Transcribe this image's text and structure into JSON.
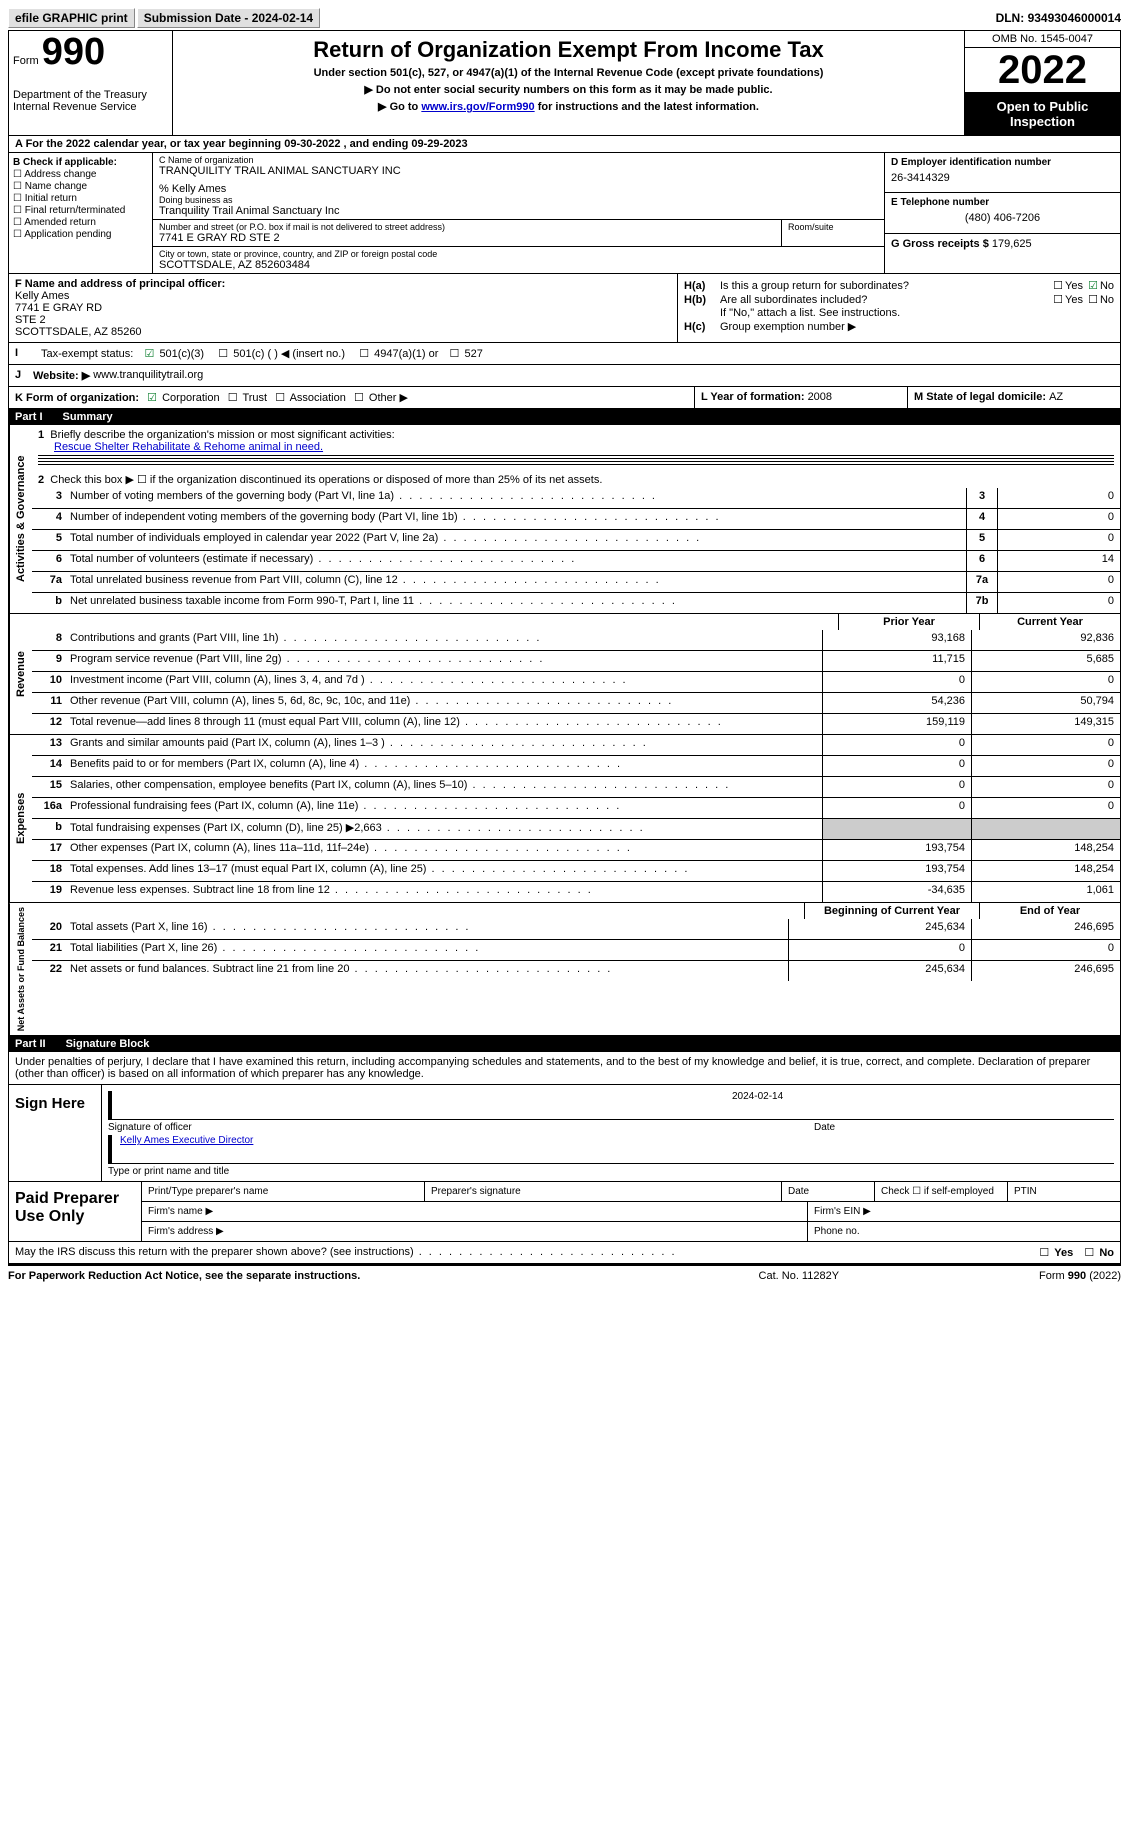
{
  "topbar": {
    "efile": "efile GRAPHIC print",
    "submission_label": "Submission Date - ",
    "submission_date": "2024-02-14",
    "dln_label": "DLN: ",
    "dln": "93493046000014"
  },
  "header": {
    "form_word": "Form",
    "form_num": "990",
    "dept": "Department of the Treasury\nInternal Revenue Service",
    "title": "Return of Organization Exempt From Income Tax",
    "sub1": "Under section 501(c), 527, or 4947(a)(1) of the Internal Revenue Code (except private foundations)",
    "sub2": "Do not enter social security numbers on this form as it may be made public.",
    "sub3_pre": "Go to ",
    "sub3_link": "www.irs.gov/Form990",
    "sub3_post": " for instructions and the latest information.",
    "omb": "OMB No. 1545-0047",
    "year": "2022",
    "inspect": "Open to Public Inspection"
  },
  "row_a": {
    "prefix": "A For the 2022 calendar year, or tax year beginning ",
    "begin": "09-30-2022",
    "mid": " , and ending ",
    "end": "09-29-2023"
  },
  "box_b": {
    "hdr": "B Check if applicable:",
    "opts": [
      "Address change",
      "Name change",
      "Initial return",
      "Final return/terminated",
      "Amended return",
      "Application pending"
    ]
  },
  "box_c": {
    "name_lbl": "C Name of organization",
    "name": "TRANQUILITY TRAIL ANIMAL SANCTUARY INC",
    "pct": "% Kelly Ames",
    "dba_lbl": "Doing business as",
    "dba": "Tranquility Trail Animal Sanctuary Inc",
    "addr_lbl": "Number and street (or P.O. box if mail is not delivered to street address)",
    "addr": "7741 E GRAY RD STE 2",
    "room_lbl": "Room/suite",
    "city_lbl": "City or town, state or province, country, and ZIP or foreign postal code",
    "city": "SCOTTSDALE, AZ  852603484"
  },
  "box_d": {
    "lbl": "D Employer identification number",
    "val": "26-3414329"
  },
  "box_e": {
    "lbl": "E Telephone number",
    "val": "(480) 406-7206"
  },
  "box_g": {
    "lbl": "G Gross receipts $ ",
    "val": "179,625"
  },
  "box_f": {
    "lbl": "F Name and address of principal officer:",
    "name": "Kelly Ames",
    "l1": "7741 E GRAY RD",
    "l2": "STE 2",
    "l3": "SCOTTSDALE, AZ  85260"
  },
  "box_h": {
    "a_lbl": "H(a)",
    "a_txt": "Is this a group return for subordinates?",
    "b_lbl": "H(b)",
    "b_txt": "Are all subordinates included?",
    "note": "If \"No,\" attach a list. See instructions.",
    "c_lbl": "H(c)",
    "c_txt": "Group exemption number ▶",
    "yes": "Yes",
    "no": "No"
  },
  "row_i": {
    "lbl": "I",
    "txt": "Tax-exempt status:",
    "o1": "501(c)(3)",
    "o2": "501(c) (  ) ◀ (insert no.)",
    "o3": "4947(a)(1) or",
    "o4": "527"
  },
  "row_j": {
    "lbl": "J",
    "txt": "Website: ▶",
    "val": "www.tranquilitytrail.org"
  },
  "row_k": {
    "k": "K Form of organization:",
    "o1": "Corporation",
    "o2": "Trust",
    "o3": "Association",
    "o4": "Other ▶",
    "l": "L Year of formation: ",
    "lval": "2008",
    "m": "M State of legal domicile: ",
    "mval": "AZ"
  },
  "part1": {
    "num": "Part I",
    "title": "Summary"
  },
  "summary": {
    "q1_lbl": "1",
    "q1": "Briefly describe the organization's mission or most significant activities:",
    "mission": "Rescue Shelter Rehabilitate & Rehome animal in need.",
    "q2_lbl": "2",
    "q2": "Check this box ▶ ☐  if the organization discontinued its operations or disposed of more than 25% of its net assets.",
    "lines_single": [
      {
        "n": "3",
        "d": "Number of voting members of the governing body (Part VI, line 1a)",
        "box": "3",
        "v": "0"
      },
      {
        "n": "4",
        "d": "Number of independent voting members of the governing body (Part VI, line 1b)",
        "box": "4",
        "v": "0"
      },
      {
        "n": "5",
        "d": "Total number of individuals employed in calendar year 2022 (Part V, line 2a)",
        "box": "5",
        "v": "0"
      },
      {
        "n": "6",
        "d": "Total number of volunteers (estimate if necessary)",
        "box": "6",
        "v": "14"
      },
      {
        "n": "7a",
        "d": "Total unrelated business revenue from Part VIII, column (C), line 12",
        "box": "7a",
        "v": "0"
      },
      {
        "n": "b",
        "d": "Net unrelated business taxable income from Form 990-T, Part I, line 11",
        "box": "7b",
        "v": "0"
      }
    ],
    "prior_hdr": "Prior Year",
    "curr_hdr": "Current Year",
    "revenue": [
      {
        "n": "8",
        "d": "Contributions and grants (Part VIII, line 1h)",
        "p": "93,168",
        "c": "92,836"
      },
      {
        "n": "9",
        "d": "Program service revenue (Part VIII, line 2g)",
        "p": "11,715",
        "c": "5,685"
      },
      {
        "n": "10",
        "d": "Investment income (Part VIII, column (A), lines 3, 4, and 7d )",
        "p": "0",
        "c": "0"
      },
      {
        "n": "11",
        "d": "Other revenue (Part VIII, column (A), lines 5, 6d, 8c, 9c, 10c, and 11e)",
        "p": "54,236",
        "c": "50,794"
      },
      {
        "n": "12",
        "d": "Total revenue—add lines 8 through 11 (must equal Part VIII, column (A), line 12)",
        "p": "159,119",
        "c": "149,315"
      }
    ],
    "expenses": [
      {
        "n": "13",
        "d": "Grants and similar amounts paid (Part IX, column (A), lines 1–3 )",
        "p": "0",
        "c": "0"
      },
      {
        "n": "14",
        "d": "Benefits paid to or for members (Part IX, column (A), line 4)",
        "p": "0",
        "c": "0"
      },
      {
        "n": "15",
        "d": "Salaries, other compensation, employee benefits (Part IX, column (A), lines 5–10)",
        "p": "0",
        "c": "0"
      },
      {
        "n": "16a",
        "d": "Professional fundraising fees (Part IX, column (A), line 11e)",
        "p": "0",
        "c": "0"
      },
      {
        "n": "b",
        "d": "Total fundraising expenses (Part IX, column (D), line 25) ▶2,663",
        "p": "",
        "c": "",
        "shade": true
      },
      {
        "n": "17",
        "d": "Other expenses (Part IX, column (A), lines 11a–11d, 11f–24e)",
        "p": "193,754",
        "c": "148,254"
      },
      {
        "n": "18",
        "d": "Total expenses. Add lines 13–17 (must equal Part IX, column (A), line 25)",
        "p": "193,754",
        "c": "148,254"
      },
      {
        "n": "19",
        "d": "Revenue less expenses. Subtract line 18 from line 12",
        "p": "-34,635",
        "c": "1,061"
      }
    ],
    "na_prior": "Beginning of Current Year",
    "na_curr": "End of Year",
    "netassets": [
      {
        "n": "20",
        "d": "Total assets (Part X, line 16)",
        "p": "245,634",
        "c": "246,695"
      },
      {
        "n": "21",
        "d": "Total liabilities (Part X, line 26)",
        "p": "0",
        "c": "0"
      },
      {
        "n": "22",
        "d": "Net assets or fund balances. Subtract line 21 from line 20",
        "p": "245,634",
        "c": "246,695"
      }
    ]
  },
  "vtabs": {
    "gov": "Activities & Governance",
    "rev": "Revenue",
    "exp": "Expenses",
    "na": "Net Assets or Fund Balances"
  },
  "part2": {
    "num": "Part II",
    "title": "Signature Block"
  },
  "sig": {
    "intro": "Under penalties of perjury, I declare that I have examined this return, including accompanying schedules and statements, and to the best of my knowledge and belief, it is true, correct, and complete. Declaration of preparer (other than officer) is based on all information of which preparer has any knowledge.",
    "sign_here": "Sign Here",
    "sig_lbl": "Signature of officer",
    "date_lbl": "Date",
    "date": "2024-02-14",
    "name": "Kelly Ames  Executive Director",
    "name_lbl": "Type or print name and title"
  },
  "prep": {
    "title": "Paid Preparer Use Only",
    "c1": "Print/Type preparer's name",
    "c2": "Preparer's signature",
    "c3": "Date",
    "c4": "Check ☐ if self-employed",
    "c5": "PTIN",
    "firm_name": "Firm's name  ▶",
    "firm_ein": "Firm's EIN ▶",
    "firm_addr": "Firm's address ▶",
    "phone": "Phone no."
  },
  "discuss": {
    "txt": "May the IRS discuss this return with the preparer shown above? (see instructions)",
    "yes": "Yes",
    "no": "No"
  },
  "footer": {
    "left": "For Paperwork Reduction Act Notice, see the separate instructions.",
    "mid": "Cat. No. 11282Y",
    "right": "Form 990 (2022)"
  }
}
